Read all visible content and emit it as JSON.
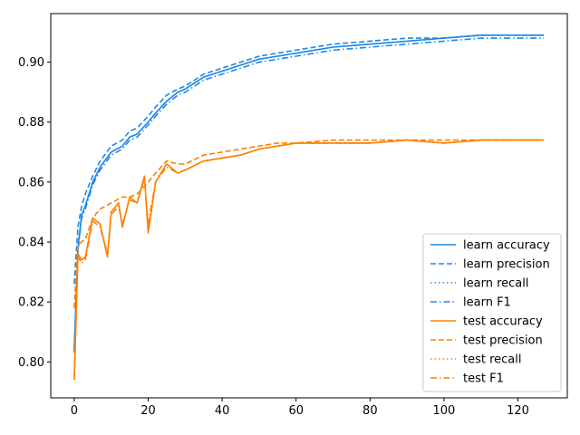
{
  "chart_data": {
    "type": "line",
    "x_range": [
      -6.35,
      133.35
    ],
    "ylim": [
      0.788,
      0.9162
    ],
    "x_ticks": [
      0,
      20,
      40,
      60,
      80,
      100,
      120
    ],
    "x_tick_labels": [
      "0",
      "20",
      "40",
      "60",
      "80",
      "100",
      "120"
    ],
    "y_ticks": [
      0.8,
      0.82,
      0.84,
      0.86,
      0.88,
      0.9
    ],
    "y_tick_labels": [
      "0.80",
      "0.82",
      "0.84",
      "0.86",
      "0.88",
      "0.90"
    ],
    "grid": false,
    "legend_position": "lower-right",
    "colors": {
      "learn": "#1f88e5",
      "test": "#ff8000"
    },
    "series": [
      {
        "name": "learn accuracy",
        "group": "learn",
        "dash": "solid",
        "x": [
          0,
          1,
          2,
          3,
          5,
          7,
          10,
          13,
          15,
          17,
          20,
          22,
          25,
          28,
          30,
          35,
          40,
          45,
          50,
          55,
          60,
          70,
          80,
          90,
          100,
          110,
          120,
          127
        ],
        "y": [
          0.804,
          0.838,
          0.849,
          0.852,
          0.86,
          0.865,
          0.87,
          0.872,
          0.875,
          0.876,
          0.88,
          0.883,
          0.887,
          0.89,
          0.891,
          0.895,
          0.897,
          0.899,
          0.901,
          0.902,
          0.903,
          0.905,
          0.906,
          0.907,
          0.908,
          0.909,
          0.909,
          0.909
        ]
      },
      {
        "name": "learn precision",
        "group": "learn",
        "dash": "dashed",
        "x": [
          0,
          1,
          2,
          3,
          5,
          7,
          10,
          13,
          15,
          17,
          20,
          22,
          25,
          28,
          30,
          35,
          40,
          45,
          50,
          55,
          60,
          70,
          80,
          90,
          100,
          110,
          120,
          127
        ],
        "y": [
          0.826,
          0.845,
          0.852,
          0.856,
          0.862,
          0.867,
          0.872,
          0.874,
          0.877,
          0.878,
          0.882,
          0.885,
          0.889,
          0.891,
          0.892,
          0.896,
          0.898,
          0.9,
          0.902,
          0.903,
          0.904,
          0.906,
          0.907,
          0.908,
          0.908,
          0.909,
          0.909,
          0.909
        ]
      },
      {
        "name": "learn recall",
        "group": "learn",
        "dash": "dotted",
        "x": [
          0,
          1,
          2,
          3,
          5,
          7,
          10,
          13,
          15,
          17,
          20,
          22,
          25,
          28,
          30,
          35,
          40,
          45,
          50,
          55,
          60,
          70,
          80,
          90,
          100,
          110,
          120,
          127
        ],
        "y": [
          0.804,
          0.838,
          0.849,
          0.852,
          0.86,
          0.865,
          0.87,
          0.872,
          0.875,
          0.876,
          0.88,
          0.883,
          0.887,
          0.89,
          0.891,
          0.895,
          0.897,
          0.899,
          0.901,
          0.902,
          0.903,
          0.905,
          0.906,
          0.907,
          0.908,
          0.909,
          0.909,
          0.909
        ]
      },
      {
        "name": "learn F1",
        "group": "learn",
        "dash": "dashdot",
        "x": [
          0,
          1,
          2,
          3,
          5,
          7,
          10,
          13,
          15,
          17,
          20,
          22,
          25,
          28,
          30,
          35,
          40,
          45,
          50,
          55,
          60,
          70,
          80,
          90,
          100,
          110,
          120,
          127
        ],
        "y": [
          0.803,
          0.837,
          0.848,
          0.851,
          0.859,
          0.864,
          0.869,
          0.871,
          0.874,
          0.875,
          0.879,
          0.882,
          0.886,
          0.889,
          0.89,
          0.894,
          0.896,
          0.898,
          0.9,
          0.901,
          0.902,
          0.904,
          0.905,
          0.906,
          0.907,
          0.908,
          0.908,
          0.908
        ]
      },
      {
        "name": "test accuracy",
        "group": "test",
        "dash": "solid",
        "x": [
          0,
          1,
          2,
          3,
          5,
          7,
          9,
          10,
          12,
          13,
          15,
          17,
          19,
          20,
          22,
          25,
          28,
          30,
          35,
          40,
          45,
          50,
          55,
          60,
          70,
          80,
          90,
          100,
          110,
          120,
          127
        ],
        "y": [
          0.794,
          0.836,
          0.834,
          0.835,
          0.848,
          0.846,
          0.835,
          0.85,
          0.853,
          0.845,
          0.855,
          0.853,
          0.862,
          0.843,
          0.86,
          0.866,
          0.863,
          0.864,
          0.867,
          0.868,
          0.869,
          0.871,
          0.872,
          0.873,
          0.873,
          0.873,
          0.874,
          0.873,
          0.874,
          0.874,
          0.874
        ]
      },
      {
        "name": "test precision",
        "group": "test",
        "dash": "dashed",
        "x": [
          0,
          1,
          2,
          3,
          5,
          7,
          10,
          13,
          15,
          17,
          20,
          22,
          25,
          28,
          30,
          35,
          40,
          45,
          50,
          55,
          60,
          70,
          80,
          90,
          100,
          110,
          120,
          127
        ],
        "y": [
          0.818,
          0.839,
          0.84,
          0.841,
          0.848,
          0.851,
          0.853,
          0.855,
          0.855,
          0.856,
          0.86,
          0.863,
          0.867,
          0.866,
          0.866,
          0.869,
          0.87,
          0.871,
          0.872,
          0.873,
          0.873,
          0.874,
          0.874,
          0.874,
          0.874,
          0.874,
          0.874,
          0.874
        ]
      },
      {
        "name": "test recall",
        "group": "test",
        "dash": "dotted",
        "x": [
          0,
          1,
          2,
          3,
          5,
          7,
          9,
          10,
          12,
          13,
          15,
          17,
          19,
          20,
          22,
          25,
          28,
          30,
          35,
          40,
          45,
          50,
          55,
          60,
          70,
          80,
          90,
          100,
          110,
          120,
          127
        ],
        "y": [
          0.794,
          0.836,
          0.834,
          0.835,
          0.848,
          0.846,
          0.835,
          0.85,
          0.853,
          0.845,
          0.855,
          0.853,
          0.862,
          0.843,
          0.86,
          0.866,
          0.863,
          0.864,
          0.867,
          0.868,
          0.869,
          0.871,
          0.872,
          0.873,
          0.873,
          0.873,
          0.874,
          0.873,
          0.874,
          0.874,
          0.874
        ]
      },
      {
        "name": "test F1",
        "group": "test",
        "dash": "dashdot",
        "x": [
          0,
          1,
          2,
          3,
          5,
          7,
          9,
          10,
          12,
          13,
          15,
          17,
          19,
          20,
          22,
          25,
          28,
          30,
          35,
          40,
          45,
          50,
          55,
          60,
          70,
          80,
          90,
          100,
          110,
          120,
          127
        ],
        "y": [
          0.795,
          0.835,
          0.833,
          0.834,
          0.847,
          0.845,
          0.836,
          0.849,
          0.852,
          0.846,
          0.854,
          0.853,
          0.861,
          0.846,
          0.86,
          0.865,
          0.863,
          0.864,
          0.867,
          0.868,
          0.869,
          0.871,
          0.872,
          0.873,
          0.873,
          0.873,
          0.874,
          0.873,
          0.874,
          0.874,
          0.874
        ]
      }
    ]
  }
}
